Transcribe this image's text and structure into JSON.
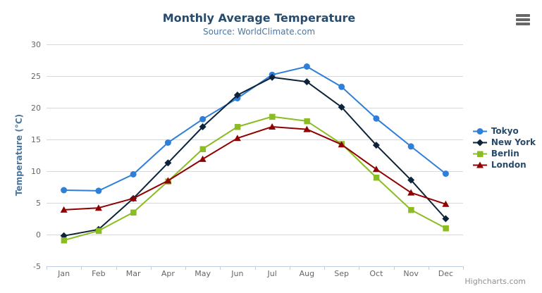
{
  "chart_data": {
    "type": "line",
    "title": "Monthly Average Temperature",
    "subtitle": "Source: WorldClimate.com",
    "xlabel": "",
    "ylabel": "Temperature (°C)",
    "ylim": [
      -5,
      30
    ],
    "yticks": [
      -5,
      0,
      5,
      10,
      15,
      20,
      25,
      30
    ],
    "categories": [
      "Jan",
      "Feb",
      "Mar",
      "Apr",
      "May",
      "Jun",
      "Jul",
      "Aug",
      "Sep",
      "Oct",
      "Nov",
      "Dec"
    ],
    "grid": true,
    "legend_position": "right",
    "series": [
      {
        "name": "Tokyo",
        "color": "#2f7ed8",
        "marker": "circle",
        "values": [
          7.0,
          6.9,
          9.5,
          14.5,
          18.2,
          21.5,
          25.2,
          26.5,
          23.3,
          18.3,
          13.9,
          9.6
        ]
      },
      {
        "name": "New York",
        "color": "#0d233a",
        "marker": "diamond",
        "values": [
          -0.2,
          0.8,
          5.7,
          11.3,
          17.0,
          22.0,
          24.8,
          24.1,
          20.1,
          14.1,
          8.6,
          2.5
        ]
      },
      {
        "name": "Berlin",
        "color": "#8bbc21",
        "marker": "square",
        "values": [
          -0.9,
          0.6,
          3.5,
          8.4,
          13.5,
          17.0,
          18.6,
          17.9,
          14.3,
          9.0,
          3.9,
          1.0
        ]
      },
      {
        "name": "London",
        "color": "#910000",
        "marker": "triangle",
        "values": [
          3.9,
          4.2,
          5.7,
          8.5,
          11.9,
          15.2,
          17.0,
          16.6,
          14.2,
          10.3,
          6.6,
          4.8
        ]
      }
    ],
    "style_colors": {
      "title": "#274b6d",
      "subtitle": "#4d759e",
      "axis_title": "#4d759e",
      "axis_labels": "#666666",
      "grid_line": "#d8d8d8",
      "axis_line": "#c0d0e0",
      "legend_text": "#274b6d",
      "credits": "#909090",
      "export_icon": "#666666"
    },
    "credits": "Highcharts.com"
  }
}
